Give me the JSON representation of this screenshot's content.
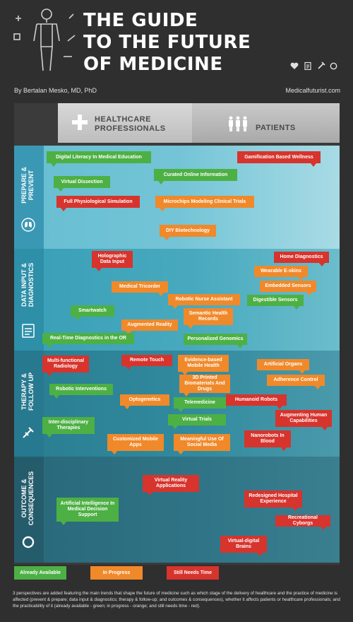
{
  "header": {
    "title_line1": "THE GUIDE",
    "title_line2": "TO THE FUTURE",
    "title_line3": "OF MEDICINE",
    "author": "By Bertalan Mesko, MD, PhD",
    "site": "Medicalfuturist.com"
  },
  "columns": {
    "hp_line1": "HEALTHCARE",
    "hp_line2": "PROFESSIONALS",
    "patients": "PATIENTS"
  },
  "sections": {
    "prepare": "PREPARE & PREVENT",
    "data_input": "DATA INPUT & DIAGNOSTICS",
    "therapy": "THERAPY & FOLLOW UP",
    "outcome": "OUTCOME & CONSEQUENCES"
  },
  "tags": {
    "t1": "Digital Literacy In Medical Education",
    "t2": "Gamification Based Wellness",
    "t3": "Curated Online Information",
    "t4": "Virtual Dissection",
    "t5": "Full Physiological Simulation",
    "t6": "Microchips Modeling Clinical Trials",
    "t7": "DIY Biotechnology",
    "t8": "Holographic Data Input",
    "t9": "Home Diagnostics",
    "t10": "Wearable E-skins",
    "t11": "Medical Tricorder",
    "t12": "Embedded Sensors",
    "t13": "Robotic Nurse Assistant",
    "t14": "Digestible Sensors",
    "t15": "Smartwatch",
    "t16": "Semantic Health Records",
    "t17": "Augmented Reality",
    "t18": "Real-Time Diagnostics in the OR",
    "t19": "Personalized Genomics",
    "t20": "Multi-functional Radiology",
    "t21": "Remote Touch",
    "t22": "Evidence-based Mobile Health",
    "t23": "Artificial Organs",
    "t24": "3D Printed Biomaterials And Drugs",
    "t25": "Adherence Control",
    "t26": "Robotic Interventions",
    "t27": "Optogenetics",
    "t28": "Telemedicine",
    "t29": "Humanoid Robots",
    "t30": "Augmenting Human Capabilities",
    "t31": "Inter-disciplinary Therapies",
    "t32": "Virtual Trials",
    "t33": "Customized Mobile Apps",
    "t34": "Meaningful Use Of Social Media",
    "t35": "Nanorobots In Blood",
    "t36": "Virtual Reality Applications",
    "t37": "Artificial Intelligence In Medical Decision Support",
    "t38": "Redesigned Hospital Experience",
    "t39": "Recreational Cyborgs",
    "t40": "Virtual-digital Brains"
  },
  "legend": {
    "available": "Already Available",
    "progress": "In Progress",
    "needs_time": "Still Needs Time"
  },
  "footnote": "3 perspectives are added featuring the main trends that shape the future of medicine such as which stage of the delivery of healthcare and the practice of medicine is affected (prevent & prepare; data input & diagnostics; therapy & follow-up; and outcomes & consequences), whether it affects patients or healthcare professionals; and the practicability of it (already available - green; in progress - orange; and still needs time - red).",
  "colors": {
    "available": "#4db044",
    "progress": "#f0892a",
    "needs_time": "#d6342d"
  }
}
